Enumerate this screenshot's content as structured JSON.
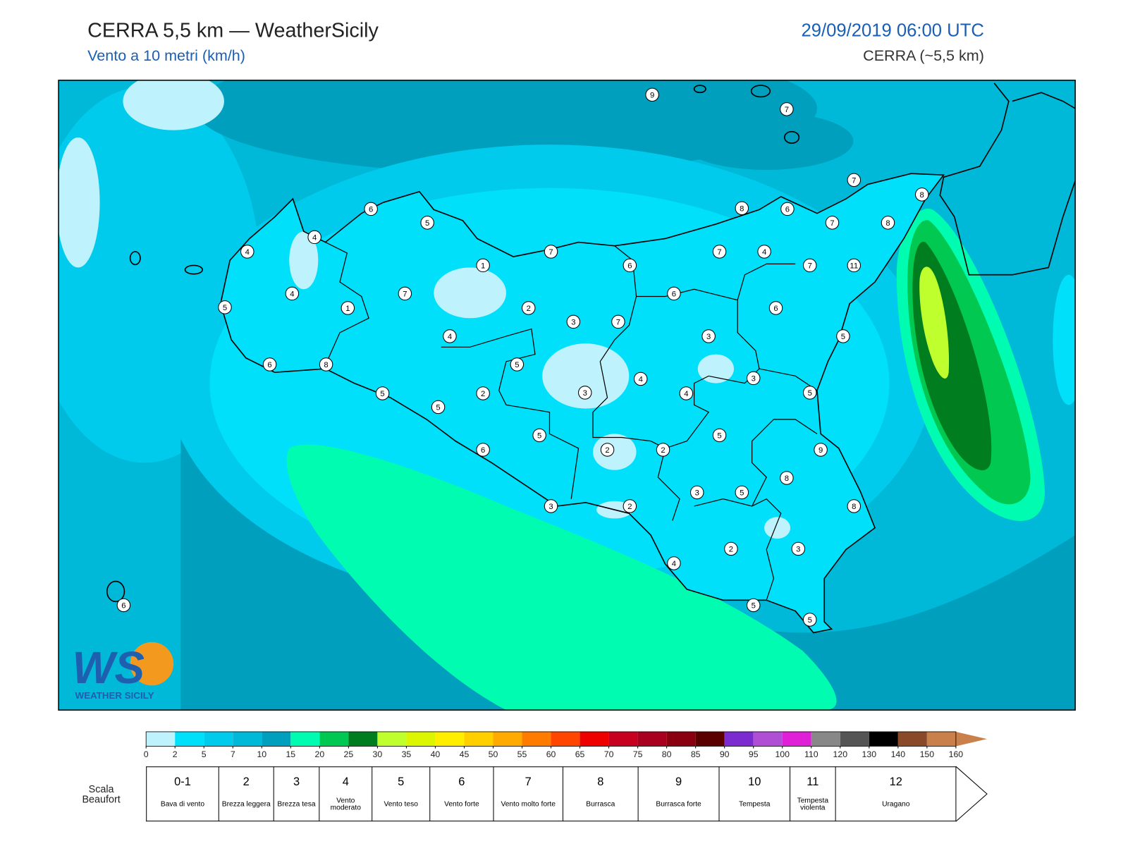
{
  "header": {
    "title": "CERRA 5,5 km — WeatherSicily",
    "subtitle": "Vento a 10 metri (km/h)",
    "date": "29/09/2019 06:00 UTC",
    "model": "CERRA (~5,5 km)"
  },
  "map": {
    "stations": [
      9,
      7,
      7,
      8,
      6,
      5,
      8,
      6,
      7,
      8,
      4,
      4,
      7,
      7,
      4,
      1,
      6,
      7,
      11,
      4,
      7,
      6,
      5,
      1,
      2,
      6,
      3,
      7,
      4,
      3,
      5,
      6,
      8,
      5,
      4,
      3,
      5,
      2,
      3,
      4,
      5,
      5,
      5,
      5,
      6,
      2,
      2,
      9,
      8,
      3,
      5,
      3,
      2,
      8,
      2,
      3,
      4,
      5,
      5,
      6
    ]
  },
  "logo": {
    "mark": "WS",
    "name": "Weather Sicily"
  },
  "legend": {
    "ticks": [
      0,
      2,
      5,
      7,
      10,
      15,
      20,
      25,
      30,
      35,
      40,
      45,
      50,
      55,
      60,
      65,
      70,
      75,
      80,
      85,
      90,
      95,
      100,
      110,
      120,
      130,
      140,
      150,
      160
    ],
    "colors": [
      "#bef3fd",
      "#00e0fb",
      "#00cbec",
      "#00b8d8",
      "#009fbd",
      "#00fcb0",
      "#00c850",
      "#007d1e",
      "#c0ff2e",
      "#dcf500",
      "#ffee00",
      "#ffcf00",
      "#ffaa00",
      "#ff7b00",
      "#ff4500",
      "#ee0000",
      "#c80020",
      "#aa0020",
      "#8a0010",
      "#5a0000",
      "#7b2bd0",
      "#b04fd6",
      "#e020d8",
      "#888888",
      "#555555",
      "#000000",
      "#8a4a2a",
      "#c9804a"
    ]
  },
  "beaufort": {
    "title": "Scala Beaufort",
    "levels": [
      {
        "force": "0-1",
        "label": "Bava di vento"
      },
      {
        "force": "2",
        "label": "Brezza leggera"
      },
      {
        "force": "3",
        "label": "Brezza tesa"
      },
      {
        "force": "4",
        "label": "Vento moderato"
      },
      {
        "force": "5",
        "label": "Vento teso"
      },
      {
        "force": "6",
        "label": "Vento forte"
      },
      {
        "force": "7",
        "label": "Vento molto forte"
      },
      {
        "force": "8",
        "label": "Burrasca"
      },
      {
        "force": "9",
        "label": "Burrasca forte"
      },
      {
        "force": "10",
        "label": "Tempesta"
      },
      {
        "force": "11",
        "label": "Tempesta violenta"
      },
      {
        "force": "12",
        "label": "Uragano"
      }
    ]
  }
}
